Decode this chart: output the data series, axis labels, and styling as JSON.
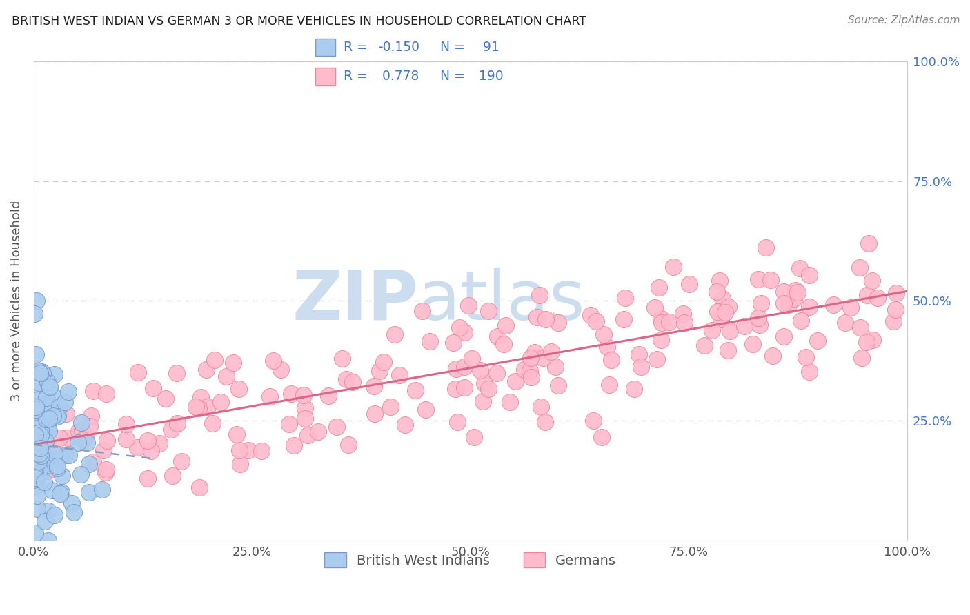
{
  "title": "BRITISH WEST INDIAN VS GERMAN 3 OR MORE VEHICLES IN HOUSEHOLD CORRELATION CHART",
  "source": "Source: ZipAtlas.com",
  "ylabel": "3 or more Vehicles in Household",
  "xlim": [
    0,
    100
  ],
  "ylim": [
    0,
    100
  ],
  "r_blue": -0.15,
  "n_blue": 91,
  "r_pink": 0.778,
  "n_pink": 190,
  "blue_face_color": "#aaccee",
  "blue_edge_color": "#7799cc",
  "pink_face_color": "#ffbbcc",
  "pink_edge_color": "#ee8899",
  "pink_line_color": "#dd6688",
  "blue_line_color": "#8899bb",
  "watermark_zi_color": "#ccddf0",
  "watermark_atlas_color": "#ccddf0",
  "grid_color": "#cccccc",
  "right_tick_color": "#4477cc",
  "legend_label_blue": "British West Indians",
  "legend_label_pink": "Germans",
  "legend_text_color": "#4477cc",
  "background_color": "#ffffff",
  "title_color": "#222222",
  "source_color": "#888888",
  "ylabel_color": "#555555",
  "xtick_color": "#555555",
  "blue_seed": 42,
  "pink_seed": 17
}
